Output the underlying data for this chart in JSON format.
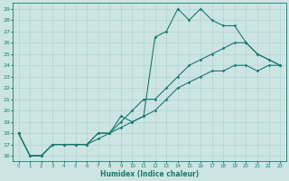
{
  "title": "",
  "xlabel": "Humidex (Indice chaleur)",
  "bg_color": "#cce5e3",
  "line_color": "#1a7a6e",
  "grid_color": "#aacfcc",
  "xlim": [
    -0.5,
    23.5
  ],
  "ylim": [
    15.5,
    29.5
  ],
  "xticks": [
    0,
    1,
    2,
    3,
    4,
    5,
    6,
    7,
    8,
    9,
    10,
    11,
    12,
    13,
    14,
    15,
    16,
    17,
    18,
    19,
    20,
    21,
    22,
    23
  ],
  "yticks": [
    16,
    17,
    18,
    19,
    20,
    21,
    22,
    23,
    24,
    25,
    26,
    27,
    28,
    29
  ],
  "line1_x": [
    0,
    1,
    2,
    3,
    4,
    5,
    6,
    7,
    8,
    9,
    10,
    11,
    12,
    13,
    14,
    15,
    16,
    17,
    18,
    19,
    20,
    21,
    22,
    23
  ],
  "line1_y": [
    18,
    16,
    16,
    17,
    17,
    17,
    17,
    18,
    18,
    19.5,
    19,
    19.5,
    26.5,
    27,
    29,
    28,
    29,
    28,
    27.5,
    27.5,
    26,
    25,
    24.5,
    24
  ],
  "line2_x": [
    0,
    1,
    2,
    3,
    4,
    5,
    6,
    7,
    8,
    9,
    10,
    11,
    12,
    13,
    14,
    15,
    16,
    17,
    18,
    19,
    20,
    21,
    22,
    23
  ],
  "line2_y": [
    18,
    16,
    16,
    17,
    17,
    17,
    17,
    18,
    18,
    19,
    20,
    21,
    21,
    22,
    23,
    24,
    24.5,
    25,
    25.5,
    26,
    26,
    25,
    24.5,
    24
  ],
  "line3_x": [
    0,
    1,
    2,
    3,
    4,
    5,
    6,
    7,
    8,
    9,
    10,
    11,
    12,
    13,
    14,
    15,
    16,
    17,
    18,
    19,
    20,
    21,
    22,
    23
  ],
  "line3_y": [
    18,
    16,
    16,
    17,
    17,
    17,
    17,
    17.5,
    18,
    18.5,
    19,
    19.5,
    20,
    21,
    22,
    22.5,
    23,
    23.5,
    23.5,
    24,
    24,
    23.5,
    24,
    24
  ]
}
